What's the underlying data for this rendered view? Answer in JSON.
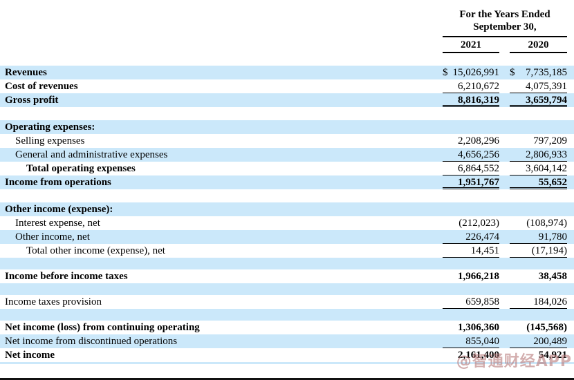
{
  "header": {
    "period_title_line1": "For the Years Ended",
    "period_title_line2": "September 30,",
    "columns": [
      "2021",
      "2020"
    ]
  },
  "watermark": "@智通财经APP",
  "colors": {
    "row_highlight": "#cbe8fa",
    "rule_line": "#000000",
    "watermark": "#b87c7c",
    "bottom_edge": "#111111"
  },
  "table": {
    "rows": [
      {
        "label": "Revenues",
        "indent": 0,
        "bold": true,
        "bg": "blue",
        "dollar": true,
        "y2021": "15,026,991",
        "y2020": "7,735,185"
      },
      {
        "label": "Cost of revenues",
        "indent": 0,
        "bold": true,
        "bg": "white",
        "y2021": "6,210,672",
        "y2020": "4,075,391",
        "underline": "single"
      },
      {
        "label": "Gross profit",
        "indent": 0,
        "bold": true,
        "bg": "blue",
        "y2021": "8,816,319",
        "y2020": "3,659,794",
        "value_bold": true,
        "underline": "double"
      },
      {
        "spacer": true,
        "bg": "white"
      },
      {
        "label": "Operating expenses:",
        "indent": 0,
        "bold": true,
        "bg": "blue"
      },
      {
        "label": "Selling expenses",
        "indent": 1,
        "bold": false,
        "bg": "white",
        "y2021": "2,208,296",
        "y2020": "797,209"
      },
      {
        "label": "General and administrative expenses",
        "indent": 1,
        "bold": false,
        "bg": "blue",
        "y2021": "4,656,256",
        "y2020": "2,806,933",
        "underline": "single"
      },
      {
        "label": "Total operating expenses",
        "indent": 2,
        "bold": true,
        "bg": "white",
        "y2021": "6,864,552",
        "y2020": "3,604,142",
        "underline": "single"
      },
      {
        "label": "Income from operations",
        "indent": 0,
        "bold": true,
        "bg": "blue",
        "y2021": "1,951,767",
        "y2020": "55,652",
        "value_bold": true,
        "underline": "double"
      },
      {
        "spacer": true,
        "bg": "white"
      },
      {
        "label": "Other income (expense):",
        "indent": 0,
        "bold": true,
        "bg": "blue"
      },
      {
        "label": "Interest expense, net",
        "indent": 1,
        "bold": false,
        "bg": "white",
        "y2021": "(212,023)",
        "y2020": "(108,974)"
      },
      {
        "label": "Other income, net",
        "indent": 1,
        "bold": false,
        "bg": "blue",
        "y2021": "226,474",
        "y2020": "91,780",
        "underline": "single"
      },
      {
        "label": "Total other income (expense), net",
        "indent": 2,
        "bold": false,
        "bg": "white",
        "y2021": "14,451",
        "y2020": "(17,194)",
        "underline": "single"
      },
      {
        "spacer": true,
        "bg": "blue"
      },
      {
        "label": "Income before income taxes",
        "indent": 0,
        "bold": true,
        "bg": "white",
        "y2021": "1,966,218",
        "y2020": "38,458",
        "value_bold": true
      },
      {
        "spacer": true,
        "bg": "blue"
      },
      {
        "label": "Income taxes provision",
        "indent": 0,
        "bold": false,
        "bg": "white",
        "y2021": "659,858",
        "y2020": "184,026",
        "underline": "single"
      },
      {
        "spacer": true,
        "bg": "blue"
      },
      {
        "label": "Net income (loss) from continuing operating",
        "indent": 0,
        "bold": true,
        "bg": "white",
        "y2021": "1,306,360",
        "y2020": "(145,568)",
        "value_bold": true
      },
      {
        "label": "Net income from discontinued operations",
        "indent": 0,
        "bold": false,
        "bg": "blue",
        "y2021": "855,040",
        "y2020": "200,489",
        "underline": "single"
      },
      {
        "label": "Net income",
        "indent": 0,
        "bold": true,
        "bg": "white",
        "y2021": "2,161,400",
        "y2020": "54,921",
        "value_bold": true
      }
    ]
  }
}
